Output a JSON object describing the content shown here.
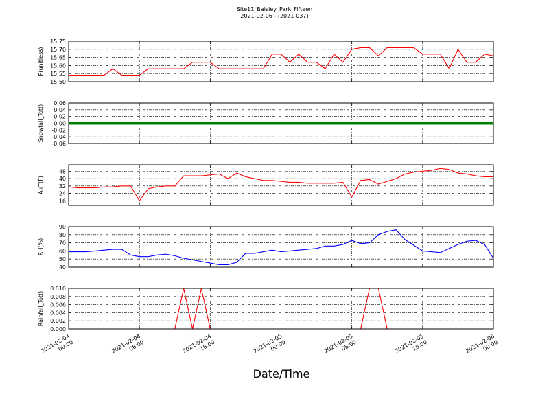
{
  "chart_data": [
    {
      "type": "line",
      "title": "Site11_Baisley_Park_Fifteen",
      "subtitle": "2021-02-06 - (2021-037)",
      "ylabel": "P(unitless)",
      "x": [
        "2021-02-04 00:00",
        "2021-02-04 01:00",
        "2021-02-04 02:00",
        "2021-02-04 03:00",
        "2021-02-04 04:00",
        "2021-02-04 05:00",
        "2021-02-04 06:00",
        "2021-02-04 07:00",
        "2021-02-04 08:00",
        "2021-02-04 09:00",
        "2021-02-04 10:00",
        "2021-02-04 11:00",
        "2021-02-04 12:00",
        "2021-02-04 13:00",
        "2021-02-04 14:00",
        "2021-02-04 15:00",
        "2021-02-04 16:00",
        "2021-02-04 17:00",
        "2021-02-04 18:00",
        "2021-02-04 19:00",
        "2021-02-04 20:00",
        "2021-02-04 21:00",
        "2021-02-04 22:00",
        "2021-02-04 23:00",
        "2021-02-05 00:00",
        "2021-02-05 01:00",
        "2021-02-05 02:00",
        "2021-02-05 03:00",
        "2021-02-05 04:00",
        "2021-02-05 05:00",
        "2021-02-05 06:00",
        "2021-02-05 07:00",
        "2021-02-05 08:00",
        "2021-02-05 09:00",
        "2021-02-05 10:00",
        "2021-02-05 11:00",
        "2021-02-05 12:00",
        "2021-02-05 13:00",
        "2021-02-05 14:00",
        "2021-02-05 15:00",
        "2021-02-05 16:00",
        "2021-02-05 17:00",
        "2021-02-05 18:00",
        "2021-02-05 19:00",
        "2021-02-05 20:00",
        "2021-02-05 21:00",
        "2021-02-05 22:00",
        "2021-02-05 23:00",
        "2021-02-06 00:00"
      ],
      "series": [
        {
          "color": "#ff0000",
          "values": [
            15.54,
            15.54,
            15.54,
            15.54,
            15.54,
            15.58,
            15.54,
            15.54,
            15.54,
            15.58,
            15.58,
            15.58,
            15.58,
            15.58,
            15.62,
            15.62,
            15.62,
            15.58,
            15.58,
            15.58,
            15.58,
            15.58,
            15.58,
            15.67,
            15.67,
            15.62,
            15.67,
            15.62,
            15.62,
            15.58,
            15.67,
            15.62,
            15.7,
            15.71,
            15.71,
            15.66,
            15.71,
            15.71,
            15.71,
            15.71,
            15.67,
            15.67,
            15.67,
            15.58,
            15.7,
            15.62,
            15.62,
            15.67,
            15.66
          ]
        }
      ],
      "ylim": [
        15.5,
        15.75
      ],
      "yticks": [
        {
          "value": 15.5,
          "label": "15.50"
        },
        15.55,
        {
          "value": 15.6,
          "label": "15.60"
        },
        15.65,
        {
          "value": 15.7,
          "label": "15.70"
        },
        15.75
      ],
      "grid": true
    },
    {
      "type": "line",
      "ylabel": "Snowfall_Tot()",
      "x": [
        "2021-02-04 00:00",
        "2021-02-04 01:00",
        "2021-02-04 02:00",
        "2021-02-04 03:00",
        "2021-02-04 04:00",
        "2021-02-04 05:00",
        "2021-02-04 06:00",
        "2021-02-04 07:00",
        "2021-02-04 08:00",
        "2021-02-04 09:00",
        "2021-02-04 10:00",
        "2021-02-04 11:00",
        "2021-02-04 12:00",
        "2021-02-04 13:00",
        "2021-02-04 14:00",
        "2021-02-04 15:00",
        "2021-02-04 16:00",
        "2021-02-04 17:00",
        "2021-02-04 18:00",
        "2021-02-04 19:00",
        "2021-02-04 20:00",
        "2021-02-04 21:00",
        "2021-02-04 22:00",
        "2021-02-04 23:00",
        "2021-02-05 00:00",
        "2021-02-05 01:00",
        "2021-02-05 02:00",
        "2021-02-05 03:00",
        "2021-02-05 04:00",
        "2021-02-05 05:00",
        "2021-02-05 06:00",
        "2021-02-05 07:00",
        "2021-02-05 08:00",
        "2021-02-05 09:00",
        "2021-02-05 10:00",
        "2021-02-05 11:00",
        "2021-02-05 12:00",
        "2021-02-05 13:00",
        "2021-02-05 14:00",
        "2021-02-05 15:00",
        "2021-02-05 16:00",
        "2021-02-05 17:00",
        "2021-02-05 18:00",
        "2021-02-05 19:00",
        "2021-02-05 20:00",
        "2021-02-05 21:00",
        "2021-02-05 22:00",
        "2021-02-05 23:00",
        "2021-02-06 00:00"
      ],
      "series": [
        {
          "color": "#008000",
          "values": [
            0,
            0,
            0,
            0,
            0,
            0,
            0,
            0,
            0,
            0,
            0,
            0,
            0,
            0,
            0,
            0,
            0,
            0,
            0,
            0,
            0,
            0,
            0,
            0,
            0,
            0,
            0,
            0,
            0,
            0,
            0,
            0,
            0,
            0,
            0,
            0,
            0,
            0,
            0,
            0,
            0,
            0,
            0,
            0,
            0,
            0,
            0,
            0,
            0
          ]
        }
      ],
      "ylim": [
        -0.06,
        0.06
      ],
      "yticks": [
        -0.06,
        -0.04,
        -0.02,
        {
          "value": 0,
          "label": "0.00"
        },
        0.02,
        0.04,
        0.06
      ],
      "grid": true
    },
    {
      "type": "line",
      "ylabel": "AirT(F)",
      "x": [
        "2021-02-04 00:00",
        "2021-02-04 01:00",
        "2021-02-04 02:00",
        "2021-02-04 03:00",
        "2021-02-04 04:00",
        "2021-02-04 05:00",
        "2021-02-04 06:00",
        "2021-02-04 07:00",
        "2021-02-04 08:00",
        "2021-02-04 09:00",
        "2021-02-04 10:00",
        "2021-02-04 11:00",
        "2021-02-04 12:00",
        "2021-02-04 13:00",
        "2021-02-04 14:00",
        "2021-02-04 15:00",
        "2021-02-04 16:00",
        "2021-02-04 17:00",
        "2021-02-04 18:00",
        "2021-02-04 19:00",
        "2021-02-04 20:00",
        "2021-02-04 21:00",
        "2021-02-04 22:00",
        "2021-02-04 23:00",
        "2021-02-05 00:00",
        "2021-02-05 01:00",
        "2021-02-05 02:00",
        "2021-02-05 03:00",
        "2021-02-05 04:00",
        "2021-02-05 05:00",
        "2021-02-05 06:00",
        "2021-02-05 07:00",
        "2021-02-05 08:00",
        "2021-02-05 09:00",
        "2021-02-05 10:00",
        "2021-02-05 11:00",
        "2021-02-05 12:00",
        "2021-02-05 13:00",
        "2021-02-05 14:00",
        "2021-02-05 15:00",
        "2021-02-05 16:00",
        "2021-02-05 17:00",
        "2021-02-05 18:00",
        "2021-02-05 19:00",
        "2021-02-05 20:00",
        "2021-02-05 21:00",
        "2021-02-05 22:00",
        "2021-02-05 23:00",
        "2021-02-06 00:00"
      ],
      "series": [
        {
          "color": "#ff0000",
          "values": [
            31,
            30,
            30,
            30,
            31,
            31,
            32,
            32,
            16,
            29,
            31,
            32,
            32,
            43,
            43,
            43,
            44,
            45,
            40,
            46,
            42,
            40,
            38,
            38,
            37,
            36,
            36,
            35,
            35,
            35,
            35,
            36,
            20,
            38,
            39,
            34,
            37,
            40,
            45,
            47,
            48,
            49,
            51,
            50,
            46,
            45,
            43,
            42,
            42
          ]
        }
      ],
      "ylim": [
        11,
        55
      ],
      "yticks": [
        16,
        24,
        32,
        40,
        48
      ],
      "grid": true
    },
    {
      "type": "line",
      "ylabel": "RH(%)",
      "x": [
        "2021-02-04 00:00",
        "2021-02-04 01:00",
        "2021-02-04 02:00",
        "2021-02-04 03:00",
        "2021-02-04 04:00",
        "2021-02-04 05:00",
        "2021-02-04 06:00",
        "2021-02-04 07:00",
        "2021-02-04 08:00",
        "2021-02-04 09:00",
        "2021-02-04 10:00",
        "2021-02-04 11:00",
        "2021-02-04 12:00",
        "2021-02-04 13:00",
        "2021-02-04 14:00",
        "2021-02-04 15:00",
        "2021-02-04 16:00",
        "2021-02-04 17:00",
        "2021-02-04 18:00",
        "2021-02-04 19:00",
        "2021-02-04 20:00",
        "2021-02-04 21:00",
        "2021-02-04 22:00",
        "2021-02-04 23:00",
        "2021-02-05 00:00",
        "2021-02-05 01:00",
        "2021-02-05 02:00",
        "2021-02-05 03:00",
        "2021-02-05 04:00",
        "2021-02-05 05:00",
        "2021-02-05 06:00",
        "2021-02-05 07:00",
        "2021-02-05 08:00",
        "2021-02-05 09:00",
        "2021-02-05 10:00",
        "2021-02-05 11:00",
        "2021-02-05 12:00",
        "2021-02-05 13:00",
        "2021-02-05 14:00",
        "2021-02-05 15:00",
        "2021-02-05 16:00",
        "2021-02-05 17:00",
        "2021-02-05 18:00",
        "2021-02-05 19:00",
        "2021-02-05 20:00",
        "2021-02-05 21:00",
        "2021-02-05 22:00",
        "2021-02-05 23:00",
        "2021-02-06 00:00"
      ],
      "series": [
        {
          "color": "#0000ff",
          "values": [
            59,
            59,
            59,
            60,
            61,
            62,
            62,
            55,
            53,
            53,
            55,
            56,
            54,
            51,
            49,
            47,
            45,
            43,
            43,
            46,
            57,
            57,
            59,
            61,
            59,
            60,
            61,
            62,
            63,
            66,
            66,
            68,
            73,
            69,
            70,
            80,
            84,
            86,
            74,
            67,
            60,
            59,
            58,
            63,
            68,
            72,
            73,
            68,
            51
          ]
        }
      ],
      "ylim": [
        40,
        90
      ],
      "yticks": [
        40,
        50,
        60,
        70,
        80,
        90
      ],
      "grid": true
    },
    {
      "type": "line",
      "ylabel": "Rainfall_Tot()",
      "xlabel": "Date/Time",
      "x": [
        "2021-02-04 00:00",
        "2021-02-04 01:00",
        "2021-02-04 02:00",
        "2021-02-04 03:00",
        "2021-02-04 04:00",
        "2021-02-04 05:00",
        "2021-02-04 06:00",
        "2021-02-04 07:00",
        "2021-02-04 08:00",
        "2021-02-04 09:00",
        "2021-02-04 10:00",
        "2021-02-04 11:00",
        "2021-02-04 12:00",
        "2021-02-04 13:00",
        "2021-02-04 14:00",
        "2021-02-04 15:00",
        "2021-02-04 16:00",
        "2021-02-04 17:00",
        "2021-02-04 18:00",
        "2021-02-04 19:00",
        "2021-02-04 20:00",
        "2021-02-04 21:00",
        "2021-02-04 22:00",
        "2021-02-04 23:00",
        "2021-02-05 00:00",
        "2021-02-05 01:00",
        "2021-02-05 02:00",
        "2021-02-05 03:00",
        "2021-02-05 04:00",
        "2021-02-05 05:00",
        "2021-02-05 06:00",
        "2021-02-05 07:00",
        "2021-02-05 08:00",
        "2021-02-05 09:00",
        "2021-02-05 10:00",
        "2021-02-05 11:00",
        "2021-02-05 12:00",
        "2021-02-05 13:00",
        "2021-02-05 14:00",
        "2021-02-05 15:00",
        "2021-02-05 16:00",
        "2021-02-05 17:00",
        "2021-02-05 18:00",
        "2021-02-05 19:00",
        "2021-02-05 20:00",
        "2021-02-05 21:00",
        "2021-02-05 22:00",
        "2021-02-05 23:00",
        "2021-02-06 00:00"
      ],
      "series": [
        {
          "color": "#ff0000",
          "values": [
            0,
            0,
            0,
            0,
            0,
            0,
            0,
            0,
            0,
            0,
            0,
            0,
            0,
            0.01,
            0,
            0.01,
            0,
            0,
            0,
            0,
            0,
            0,
            0,
            0,
            0,
            0,
            0,
            0,
            0,
            0,
            0,
            0,
            0,
            0,
            0.01,
            0.01,
            0,
            0,
            0,
            0,
            0,
            0,
            0,
            0,
            0,
            0,
            0,
            0,
            0
          ]
        }
      ],
      "ylim": [
        0,
        0.01
      ],
      "yticks": [
        {
          "value": 0,
          "label": "0.000"
        },
        0.002,
        0.004,
        0.006,
        0.008,
        {
          "value": 0.01,
          "label": "0.010"
        }
      ],
      "grid": true,
      "xlim": [
        "2021-02-04 00:00",
        "2021-02-06 00:00"
      ],
      "xticks": [
        "2021-02-04 00:00",
        "2021-02-04 08:00",
        "2021-02-04 16:00",
        "2021-02-05 00:00",
        "2021-02-05 08:00",
        "2021-02-05 16:00",
        "2021-02-06 00:00"
      ]
    }
  ]
}
